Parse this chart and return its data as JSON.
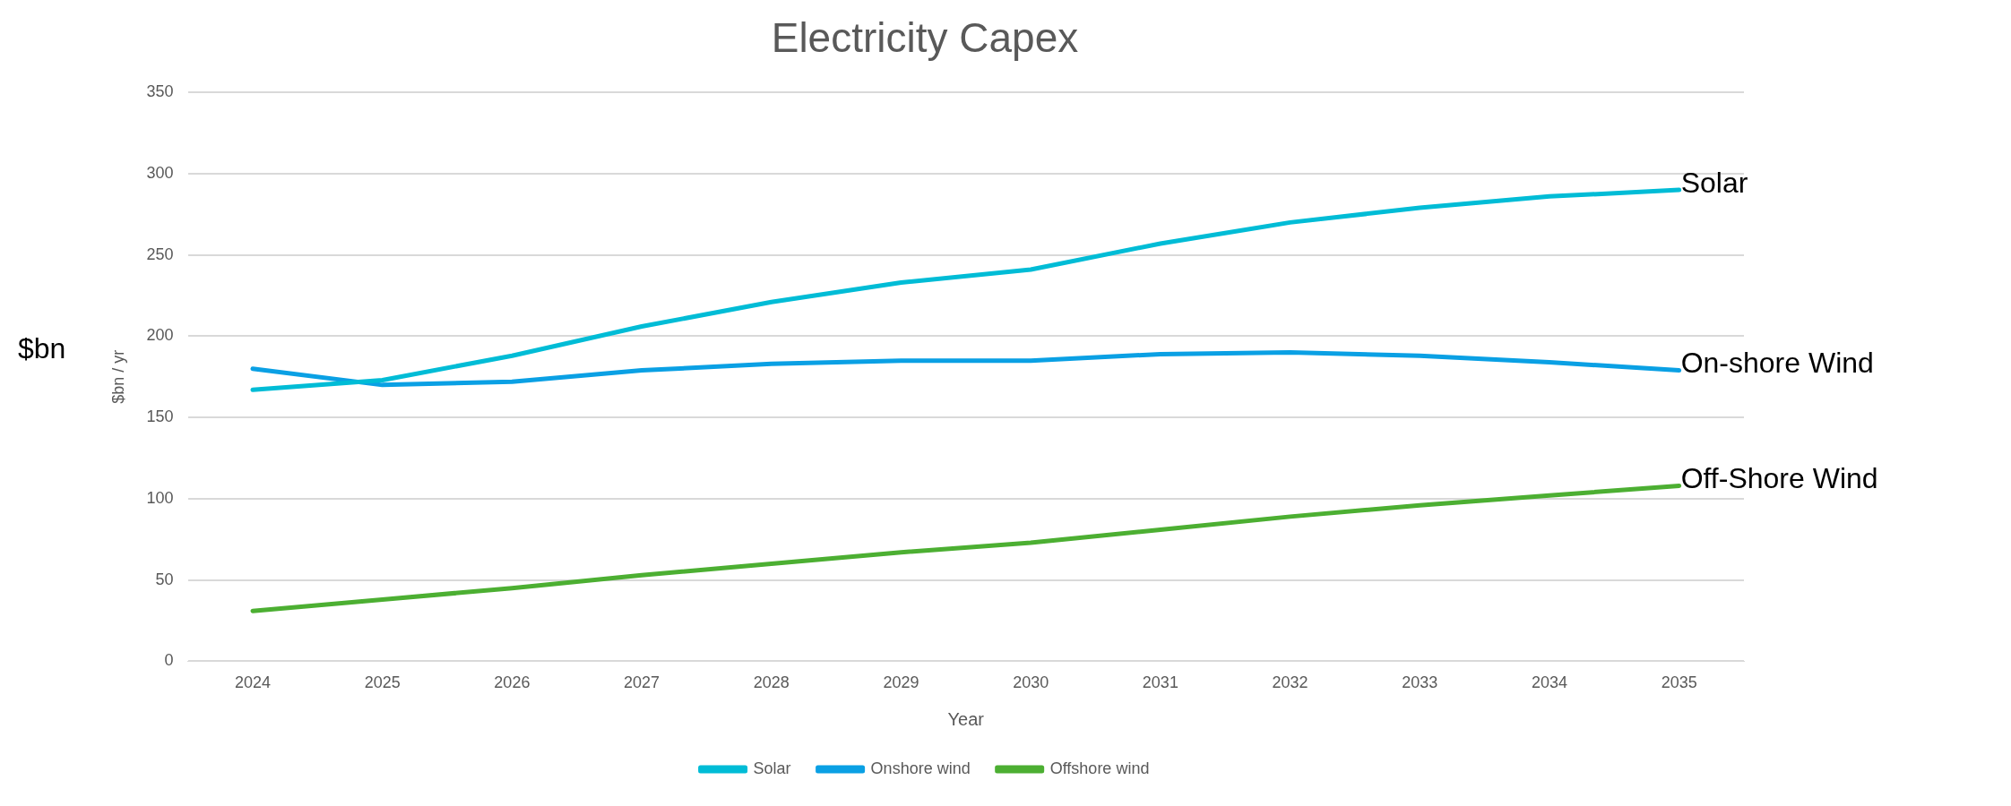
{
  "chart_data": {
    "type": "line",
    "title": "Electricity Capex",
    "xlabel": "Year",
    "ylabel": "$bn / yr",
    "categories": [
      "2024",
      "2025",
      "2026",
      "2027",
      "2028",
      "2029",
      "2030",
      "2031",
      "2032",
      "2033",
      "2034",
      "2035"
    ],
    "series": [
      {
        "name": "Solar",
        "color": "#00bcd6",
        "values": [
          167,
          173,
          188,
          206,
          221,
          233,
          241,
          257,
          270,
          279,
          286,
          290
        ]
      },
      {
        "name": "Onshore wind",
        "color": "#0aa0e4",
        "values": [
          180,
          170,
          172,
          179,
          183,
          185,
          185,
          189,
          190,
          188,
          184,
          179
        ]
      },
      {
        "name": "Offshore wind",
        "color": "#4caf32",
        "values": [
          31,
          38,
          45,
          53,
          60,
          67,
          73,
          81,
          89,
          96,
          102,
          108
        ]
      }
    ],
    "ylim": [
      0,
      350
    ],
    "yticks": [
      0,
      50,
      100,
      150,
      200,
      250,
      300,
      350
    ],
    "grid": "y",
    "legend": "bottom",
    "marker": "none",
    "line_style": "solid",
    "annotations": [
      "$bn",
      {
        "text": "Solar",
        "x": "2035",
        "y": 290
      },
      {
        "text": "On-shore Wind",
        "x": "2035",
        "y": 179
      },
      {
        "text": "Off-Shore Wind",
        "x": "2035",
        "y": 108
      }
    ]
  }
}
